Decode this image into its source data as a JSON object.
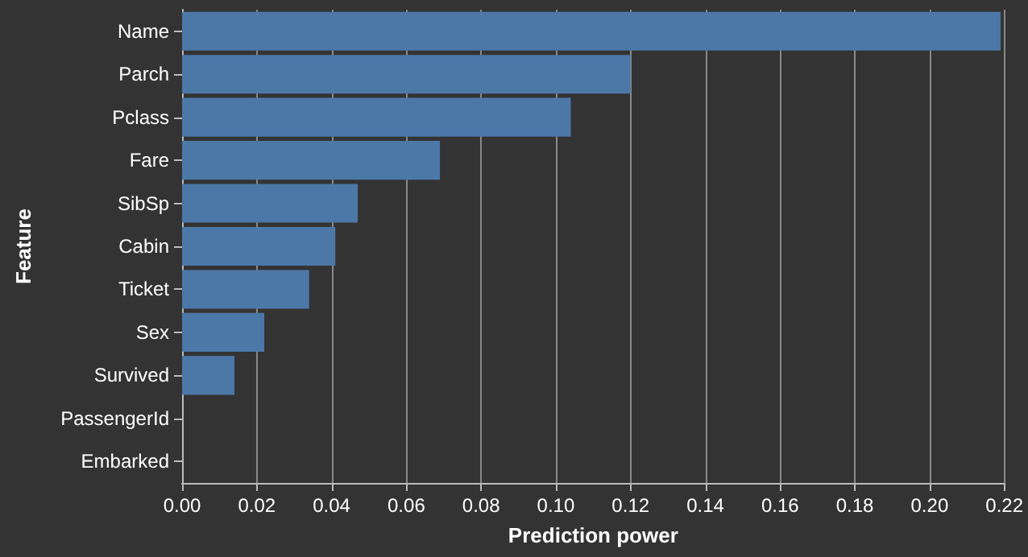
{
  "chart_data": {
    "type": "bar",
    "orientation": "horizontal",
    "xlabel": "Prediction power",
    "ylabel": "Feature",
    "categories": [
      "Name",
      "Parch",
      "Pclass",
      "Fare",
      "SibSp",
      "Cabin",
      "Ticket",
      "Sex",
      "Survived",
      "PassengerId",
      "Embarked"
    ],
    "values": [
      0.219,
      0.12,
      0.104,
      0.069,
      0.047,
      0.041,
      0.034,
      0.022,
      0.014,
      0,
      0
    ],
    "color": "#4c78a8",
    "xlim": [
      0,
      0.22
    ],
    "xticks": [
      {
        "value": 0,
        "label": "0.00"
      },
      0.02,
      0.04,
      0.06,
      0.08,
      {
        "value": 0.1,
        "label": "0.10"
      },
      0.12,
      0.14,
      0.16,
      0.18,
      {
        "value": 0.2,
        "label": "0.20"
      },
      0.22
    ],
    "grid": "x"
  }
}
